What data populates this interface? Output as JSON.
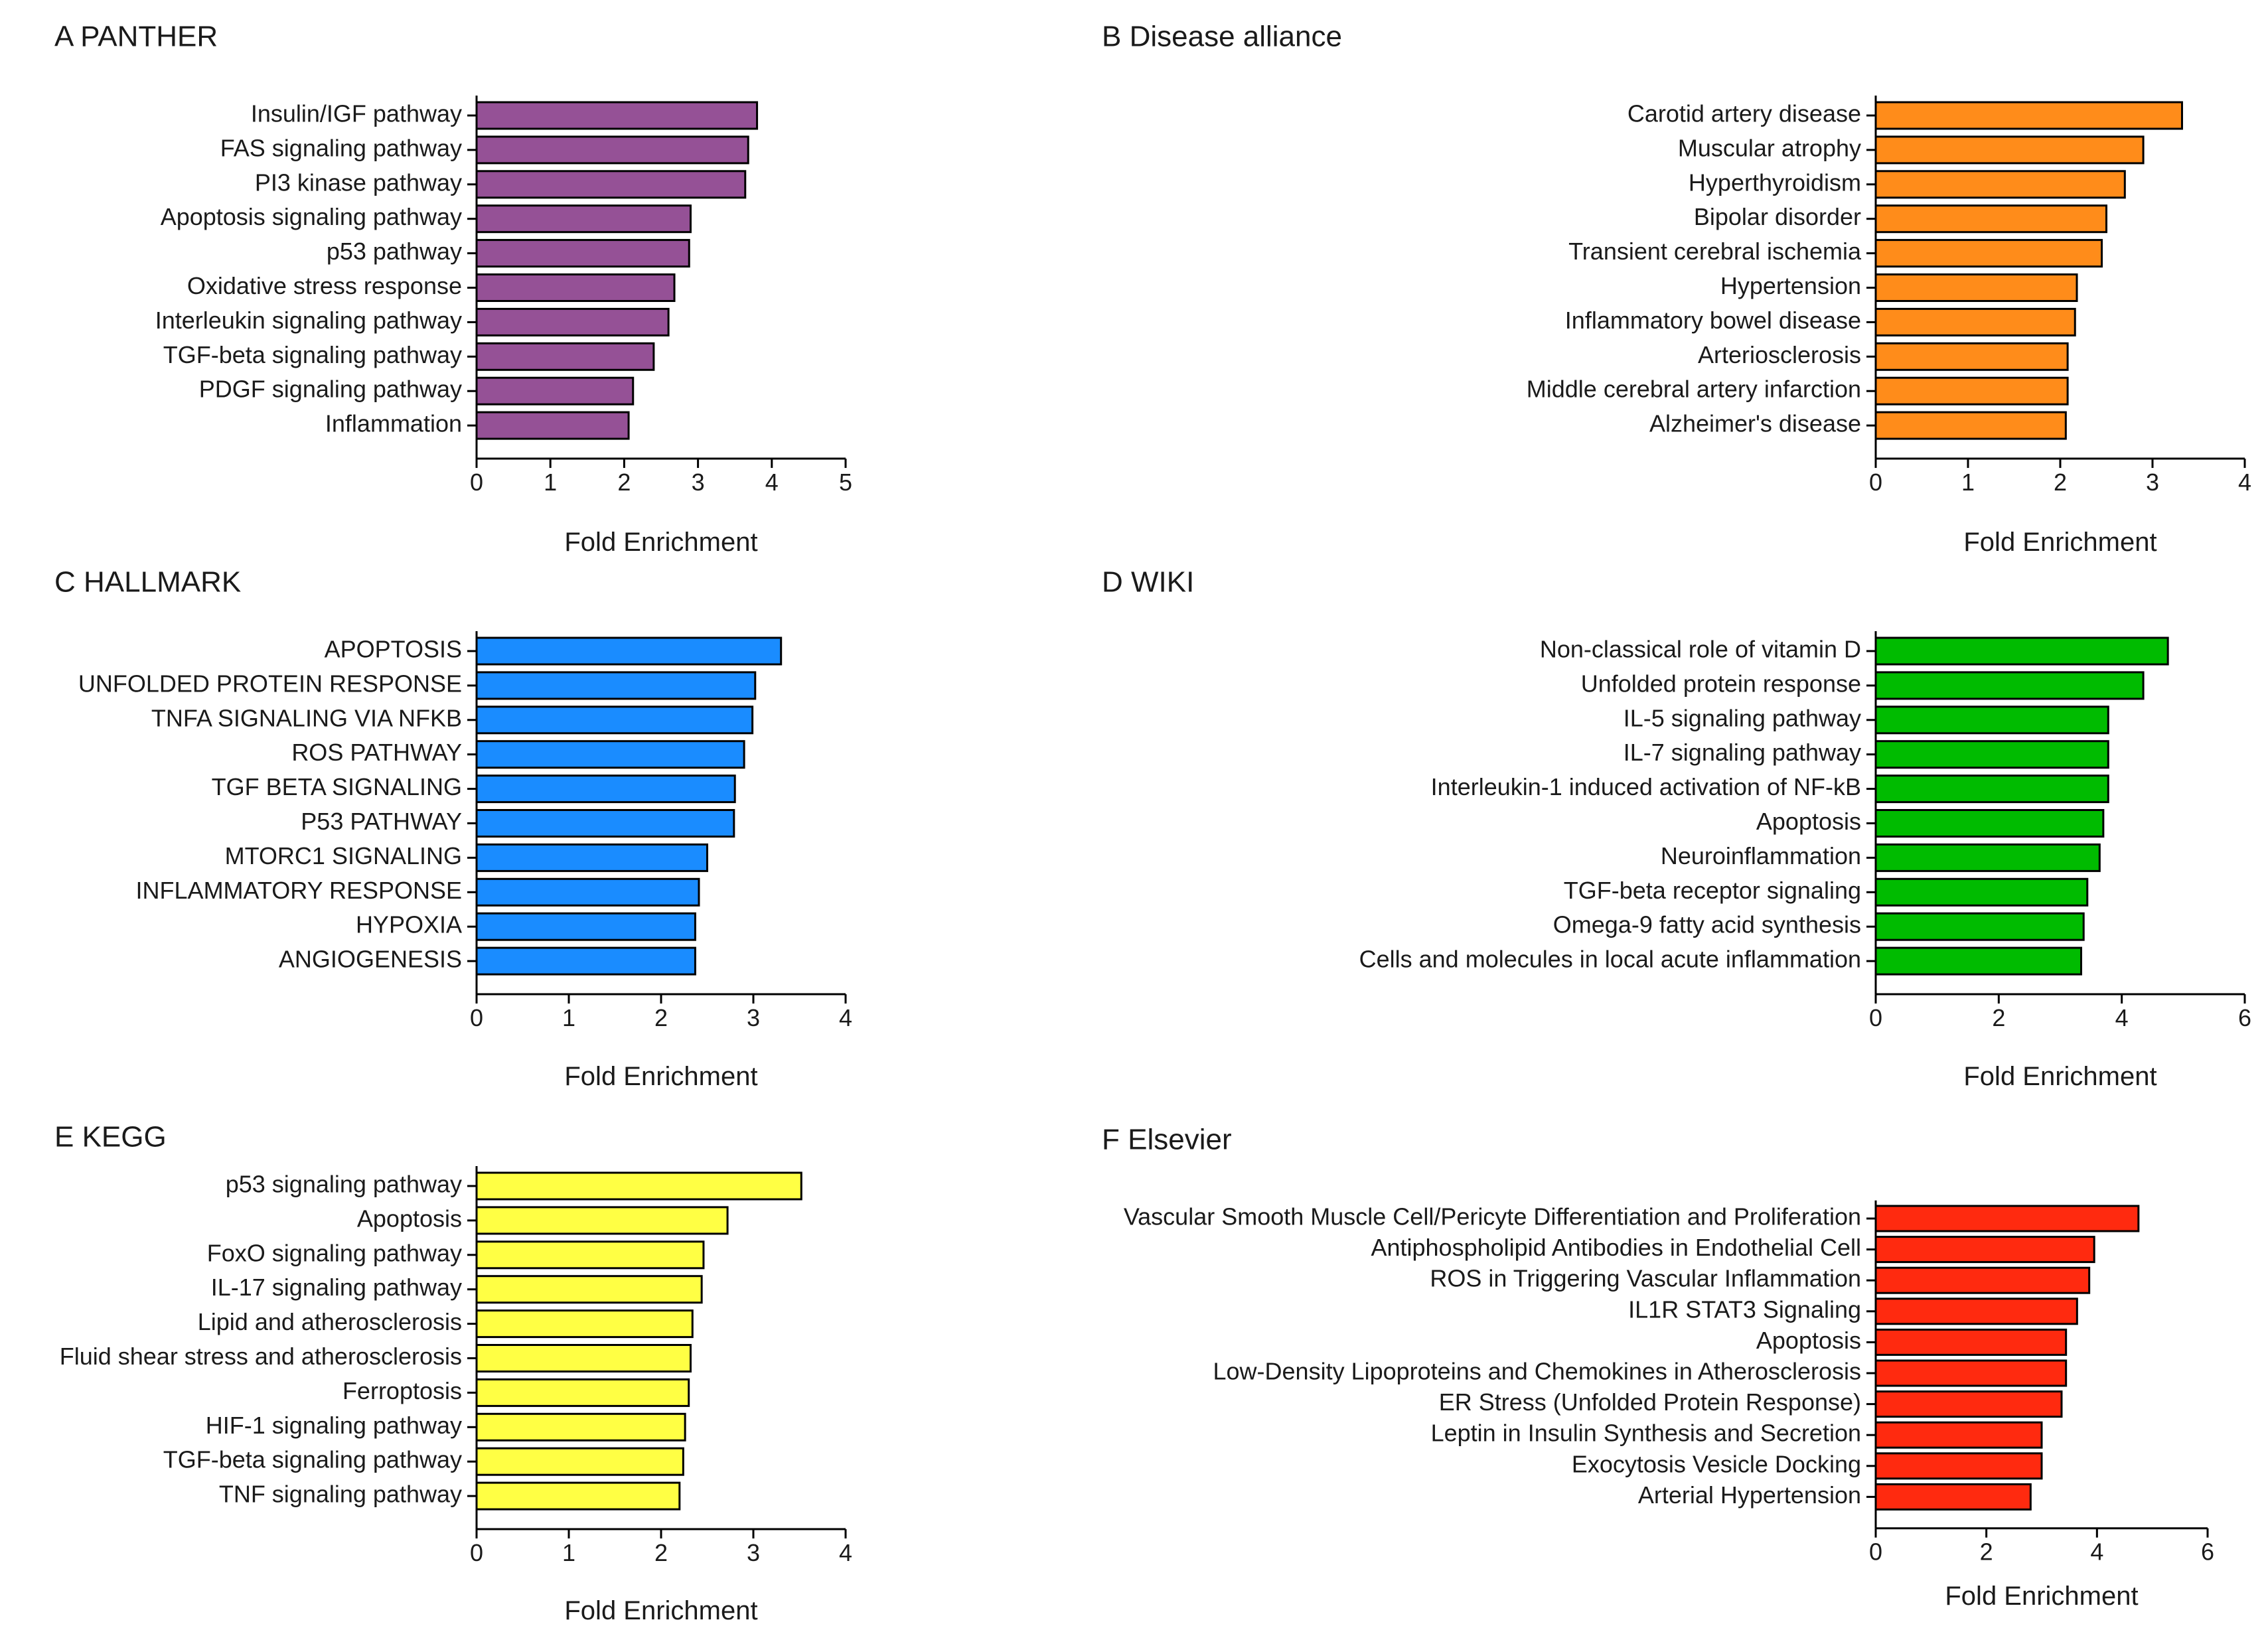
{
  "chart_data": [
    {
      "panel": "A",
      "title": "A PANTHER",
      "type": "bar",
      "orientation": "horizontal",
      "xlabel": "Fold Enrichment",
      "xlim": [
        0,
        5
      ],
      "xticks": [
        0,
        1,
        2,
        3,
        4,
        5
      ],
      "color": "#955196",
      "categories": [
        "Insulin/IGF pathway",
        "FAS signaling pathway",
        "PI3 kinase pathway",
        "Apoptosis signaling pathway",
        "p53 pathway",
        "Oxidative stress response",
        "Interleukin signaling pathway",
        "TGF-beta signaling pathway",
        "PDGF signaling pathway",
        "Inflammation"
      ],
      "values": [
        3.8,
        3.68,
        3.64,
        2.9,
        2.88,
        2.68,
        2.6,
        2.4,
        2.12,
        2.06
      ]
    },
    {
      "panel": "B",
      "title": "B  Disease alliance",
      "type": "bar",
      "orientation": "horizontal",
      "xlabel": "Fold Enrichment",
      "xlim": [
        0,
        4
      ],
      "xticks": [
        0,
        1,
        2,
        3,
        4
      ],
      "color": "#ff8c1a",
      "categories": [
        "Carotid artery disease",
        "Muscular atrophy",
        "Hyperthyroidism",
        "Bipolar disorder",
        "Transient cerebral ischemia",
        "Hypertension",
        "Inflammatory bowel disease",
        "Arteriosclerosis",
        "Middle cerebral artery infarction",
        "Alzheimer's disease"
      ],
      "values": [
        3.32,
        2.9,
        2.7,
        2.5,
        2.45,
        2.18,
        2.16,
        2.08,
        2.08,
        2.06
      ]
    },
    {
      "panel": "C",
      "title": "C  HALLMARK",
      "type": "bar",
      "orientation": "horizontal",
      "xlabel": "Fold Enrichment",
      "xlim": [
        0,
        4
      ],
      "xticks": [
        0,
        1,
        2,
        3,
        4
      ],
      "color": "#1a8cff",
      "categories": [
        "APOPTOSIS",
        "UNFOLDED PROTEIN RESPONSE",
        "TNFA SIGNALING VIA NFKB",
        "ROS PATHWAY",
        "TGF BETA SIGNALING",
        "P53 PATHWAY",
        "MTORC1 SIGNALING",
        "INFLAMMATORY RESPONSE",
        "HYPOXIA",
        "ANGIOGENESIS"
      ],
      "values": [
        3.3,
        3.02,
        2.99,
        2.9,
        2.8,
        2.79,
        2.5,
        2.41,
        2.37,
        2.37
      ]
    },
    {
      "panel": "D",
      "title": "D WIKI",
      "type": "bar",
      "orientation": "horizontal",
      "xlabel": "Fold Enrichment",
      "xlim": [
        0,
        6
      ],
      "xticks": [
        0,
        2,
        4,
        6
      ],
      "color": "#00bb00",
      "categories": [
        "Non-classical role of vitamin D",
        "Unfolded protein response",
        "IL-5 signaling pathway",
        "IL-7 signaling pathway",
        "Interleukin-1 induced activation of NF-kB",
        "Apoptosis",
        "Neuroinflammation",
        "TGF-beta receptor signaling",
        "Omega-9 fatty acid synthesis",
        "Cells and molecules in local acute inflammation"
      ],
      "values": [
        4.75,
        4.35,
        3.78,
        3.78,
        3.78,
        3.7,
        3.64,
        3.44,
        3.38,
        3.34
      ]
    },
    {
      "panel": "E",
      "title": "E  KEGG",
      "type": "bar",
      "orientation": "horizontal",
      "xlabel": "Fold Enrichment",
      "xlim": [
        0,
        4
      ],
      "xticks": [
        0,
        1,
        2,
        3,
        4
      ],
      "color": "#ffff44",
      "categories": [
        "p53 signaling pathway",
        "Apoptosis",
        "FoxO signaling pathway",
        "IL-17 signaling pathway",
        "Lipid and atherosclerosis",
        "Fluid shear stress and atherosclerosis",
        "Ferroptosis",
        "HIF-1 signaling pathway",
        "TGF-beta signaling pathway",
        "TNF signaling pathway"
      ],
      "values": [
        3.52,
        2.72,
        2.46,
        2.44,
        2.34,
        2.32,
        2.3,
        2.26,
        2.24,
        2.2
      ]
    },
    {
      "panel": "F",
      "title": "F  Elsevier",
      "type": "bar",
      "orientation": "horizontal",
      "xlabel": "Fold Enrichment",
      "xlim": [
        0,
        6
      ],
      "xticks": [
        0,
        2,
        4,
        6
      ],
      "color": "#ff2a0f",
      "categories": [
        "Vascular Smooth Muscle Cell/Pericyte Differentiation and Proliferation",
        "Antiphospholipid Antibodies in Endothelial Cell",
        "ROS in Triggering Vascular Inflammation",
        "IL1R STAT3 Signaling",
        "Apoptosis",
        "Low-Density Lipoproteins and Chemokines in Atherosclerosis",
        "ER Stress (Unfolded Protein Response)",
        "Leptin in Insulin Synthesis and Secretion",
        "Exocytosis Vesicle Docking",
        "Arterial Hypertension"
      ],
      "values": [
        4.75,
        3.95,
        3.86,
        3.64,
        3.44,
        3.44,
        3.36,
        3.0,
        3.0,
        2.8
      ]
    }
  ]
}
